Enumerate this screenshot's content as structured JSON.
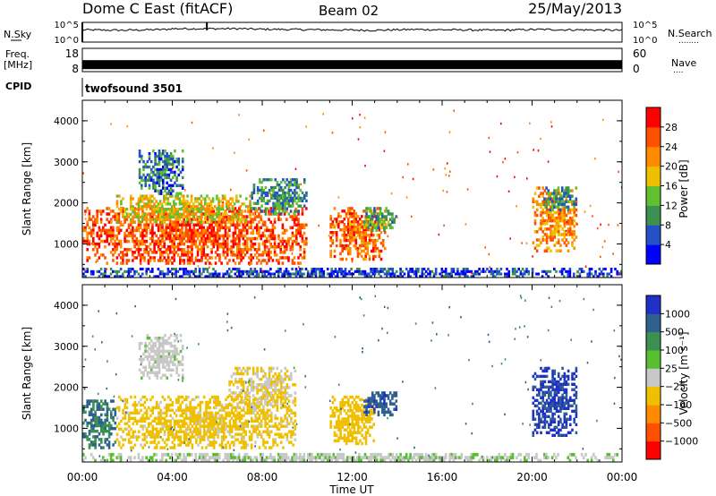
{
  "header": {
    "title": "Dome C East (fitACF)",
    "beam": "Beam 02",
    "date": "25/May/2013"
  },
  "nsky_panel": {
    "left_label": "N.Sky",
    "right_label": "N.Search",
    "right_label_dots": "........",
    "left_ticks": [
      "10^5",
      "10^0"
    ],
    "right_ticks": [
      "10^5",
      "10^0"
    ]
  },
  "freq_panel": {
    "left_label_line1": "Freq.",
    "left_label_line2": "[MHz]",
    "right_label": "Nave",
    "right_label_dots": "....",
    "left_ticks": [
      "18",
      "8"
    ],
    "right_ticks": [
      "60",
      "0"
    ]
  },
  "cpid": {
    "label": "CPID",
    "program": "twofsound 3501"
  },
  "power_panel": {
    "ylabel": "Slant Range [km]",
    "yticks": [
      "1000",
      "2000",
      "3000",
      "4000"
    ],
    "colorbar_label": "Power [dB]",
    "colorbar_ticks": [
      "4",
      "8",
      "12",
      "16",
      "20",
      "24",
      "28"
    ],
    "colors": [
      "#0000ff",
      "#2450c8",
      "#3c9050",
      "#60c030",
      "#f0c000",
      "#ff8c00",
      "#ff5000",
      "#ff0000"
    ]
  },
  "velocity_panel": {
    "ylabel": "Slant Range [km]",
    "yticks": [
      "1000",
      "2000",
      "3000",
      "4000"
    ],
    "colorbar_label": "Velocity [m s⁻¹]",
    "colorbar_ticks": [
      "1000",
      "500",
      "100",
      "25",
      "−25",
      "−100",
      "−500",
      "−1000"
    ],
    "colors": [
      "#2030c8",
      "#2f6090",
      "#3c9050",
      "#58c030",
      "#c8c8c8",
      "#f0c000",
      "#ff8c00",
      "#ff5000",
      "#ff0000"
    ]
  },
  "time_axis": {
    "label": "Time UT",
    "ticks": [
      "00:00",
      "04:00",
      "08:00",
      "12:00",
      "16:00",
      "20:00",
      "00:00"
    ]
  },
  "chart_data": [
    {
      "type": "line",
      "title": "N.Sky / N.Search",
      "x": [
        "00:00",
        "02:00",
        "04:00",
        "05:30",
        "06:00",
        "08:00",
        "10:00",
        "12:00",
        "14:00",
        "16:00",
        "18:00",
        "20:00",
        "22:00",
        "24:00"
      ],
      "series": [
        {
          "name": "N.Sky",
          "values": [
            3.1,
            3.0,
            3.2,
            4.5,
            3.3,
            3.2,
            3.1,
            3.0,
            3.2,
            3.1,
            3.0,
            3.2,
            3.1,
            3.0
          ]
        }
      ],
      "ylim": [
        0,
        5
      ]
    },
    {
      "type": "bar",
      "title": "Freq. / Nave",
      "x": [
        "00:00",
        "04:00",
        "08:00",
        "12:00",
        "16:00",
        "20:00",
        "24:00"
      ],
      "series": [
        {
          "name": "Freq. [MHz]",
          "values": [
            11,
            11,
            11,
            11,
            11,
            11,
            11
          ]
        }
      ],
      "ylim": [
        8,
        18
      ]
    },
    {
      "type": "heatmap",
      "title": "Power [dB]",
      "xlabel": "Time UT",
      "ylabel": "Slant Range [km]",
      "xlim": [
        0,
        24
      ],
      "ylim": [
        180,
        4500
      ],
      "zlim": [
        0,
        30
      ],
      "regions": [
        {
          "t": [
            0.0,
            10.0
          ],
          "r": [
            500,
            1900
          ],
          "value": 26
        },
        {
          "t": [
            1.5,
            7.5
          ],
          "r": [
            1500,
            2200
          ],
          "value": 18
        },
        {
          "t": [
            7.5,
            10.0
          ],
          "r": [
            1700,
            2600
          ],
          "value": 10
        },
        {
          "t": [
            2.5,
            4.5
          ],
          "r": [
            2200,
            3300
          ],
          "value": 8
        },
        {
          "t": [
            11.0,
            13.5
          ],
          "r": [
            600,
            1900
          ],
          "value": 25
        },
        {
          "t": [
            12.5,
            14.0
          ],
          "r": [
            1300,
            1900
          ],
          "value": 12
        },
        {
          "t": [
            20.0,
            22.0
          ],
          "r": [
            800,
            2400
          ],
          "value": 22
        },
        {
          "t": [
            20.5,
            22.0
          ],
          "r": [
            1800,
            2400
          ],
          "value": 10
        },
        {
          "t": [
            0.0,
            24.0
          ],
          "r": [
            180,
            420
          ],
          "value": 5
        }
      ]
    },
    {
      "type": "heatmap",
      "title": "Velocity [m s⁻¹]",
      "xlabel": "Time UT",
      "ylabel": "Slant Range [km]",
      "xlim": [
        0,
        24
      ],
      "ylim": [
        180,
        4500
      ],
      "zlim": [
        -1000,
        1000
      ],
      "regions": [
        {
          "t": [
            0.0,
            1.5
          ],
          "r": [
            500,
            1700
          ],
          "value": 100
        },
        {
          "t": [
            1.5,
            9.5
          ],
          "r": [
            500,
            1800
          ],
          "value": -150
        },
        {
          "t": [
            6.5,
            9.5
          ],
          "r": [
            1500,
            2500
          ],
          "value": -100
        },
        {
          "t": [
            2.5,
            4.5
          ],
          "r": [
            2200,
            3300
          ],
          "value": -60
        },
        {
          "t": [
            11.0,
            13.0
          ],
          "r": [
            600,
            1800
          ],
          "value": -200
        },
        {
          "t": [
            12.5,
            14.0
          ],
          "r": [
            1300,
            1900
          ],
          "value": 400
        },
        {
          "t": [
            20.0,
            22.0
          ],
          "r": [
            800,
            2500
          ],
          "value": 600
        },
        {
          "t": [
            0.0,
            24.0
          ],
          "r": [
            180,
            400
          ],
          "value": -40
        }
      ]
    }
  ]
}
